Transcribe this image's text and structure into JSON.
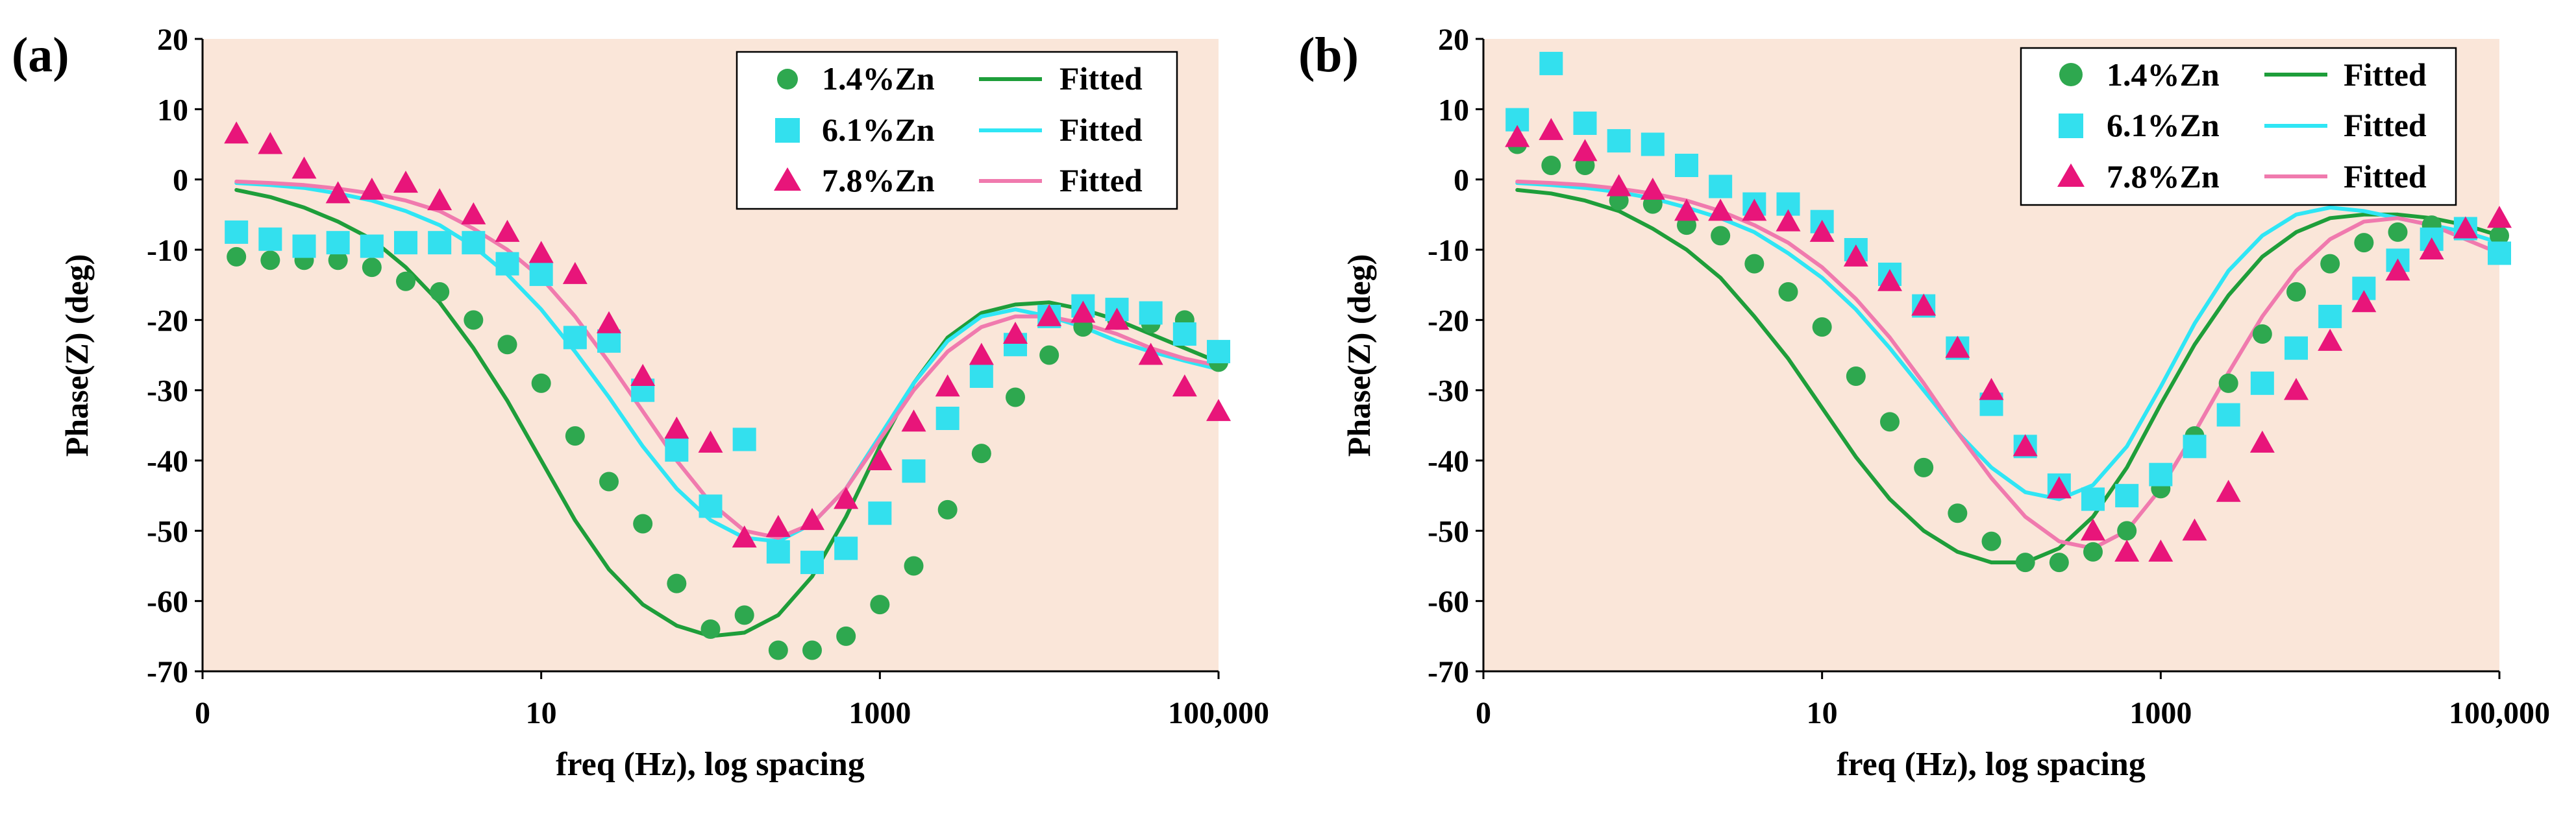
{
  "chart_data": [
    {
      "type": "scatter",
      "panel_label": "(a)",
      "xlabel": "freq (Hz), log spacing",
      "ylabel": "Phase(Z) (deg)",
      "x_scale": "log",
      "xlim_log10": [
        -1,
        5
      ],
      "ylim": [
        -70,
        20
      ],
      "x_ticks": [
        {
          "label": "0",
          "log10": -1
        },
        {
          "label": "10",
          "log10": 1
        },
        {
          "label": "1000",
          "log10": 3
        },
        {
          "label": "100,000",
          "log10": 5
        }
      ],
      "y_ticks": [
        "20",
        "10",
        "0",
        "-10",
        "-20",
        "-30",
        "-40",
        "-50",
        "-60",
        "-70"
      ],
      "y_tick_values": [
        20,
        10,
        0,
        -10,
        -20,
        -30,
        -40,
        -50,
        -60,
        -70
      ],
      "grid": false,
      "background": "#FAE6D9",
      "legend_position": "top-right",
      "legend": [
        {
          "marker_label": "1.4%Zn",
          "line_label": "Fitted",
          "color": "#2EA84F",
          "line_color": "#1E9E3A",
          "marker": "circle"
        },
        {
          "marker_label": "6.1%Zn",
          "line_label": "Fitted",
          "color": "#33E0EE",
          "line_color": "#2FE6F5",
          "marker": "square"
        },
        {
          "marker_label": "7.8%Zn",
          "line_label": "Fitted",
          "color": "#E8157A",
          "line_color": "#F07AAE",
          "marker": "triangle"
        }
      ],
      "series": [
        {
          "name": "1.4%Zn",
          "x_log10": [
            -0.8,
            -0.6,
            -0.4,
            -0.2,
            0.0,
            0.2,
            0.4,
            0.6,
            0.8,
            1.0,
            1.2,
            1.4,
            1.6,
            1.8,
            2.0,
            2.2,
            2.4,
            2.6,
            2.8,
            3.0,
            3.2,
            3.4,
            3.6,
            3.8,
            4.0,
            4.2,
            4.4,
            4.6,
            4.8,
            5.0
          ],
          "y": [
            -11,
            -11.5,
            -11.5,
            -11.5,
            -12.5,
            -14.5,
            -16,
            -20,
            -23.5,
            -29,
            -36.5,
            -43,
            -49,
            -57.5,
            -64,
            -62,
            -67,
            -67,
            -65,
            -60.5,
            -55,
            -47,
            -39,
            -31,
            -25,
            -21,
            -20,
            -20.5,
            -20,
            -26
          ]
        },
        {
          "name": "Fitted 1.4%Zn",
          "line": true,
          "x_log10": [
            -0.8,
            -0.6,
            -0.4,
            -0.2,
            0.0,
            0.2,
            0.4,
            0.6,
            0.8,
            1.0,
            1.2,
            1.4,
            1.6,
            1.8,
            2.0,
            2.2,
            2.4,
            2.6,
            2.8,
            3.0,
            3.2,
            3.4,
            3.6,
            3.8,
            4.0,
            4.2,
            4.4,
            4.6,
            4.8,
            5.0
          ],
          "y": [
            -1.5,
            -2.5,
            -4,
            -6,
            -8.5,
            -12.5,
            -17.5,
            -24,
            -31.5,
            -40,
            -48.5,
            -55.5,
            -60.5,
            -63.5,
            -65,
            -64.5,
            -62,
            -56.5,
            -48,
            -38,
            -29,
            -22.5,
            -19,
            -17.8,
            -17.5,
            -18.5,
            -20,
            -22,
            -24,
            -26
          ]
        },
        {
          "name": "6.1%Zn",
          "x_log10": [
            -0.8,
            -0.6,
            -0.4,
            -0.2,
            0.0,
            0.2,
            0.4,
            0.6,
            0.8,
            1.0,
            1.2,
            1.4,
            1.6,
            1.8,
            2.0,
            2.2,
            2.4,
            2.6,
            2.8,
            3.0,
            3.2,
            3.4,
            3.6,
            3.8,
            4.0,
            4.2,
            4.4,
            4.6,
            4.8,
            5.0
          ],
          "y": [
            -7.5,
            -8.5,
            -9.5,
            -9,
            -9.5,
            -9,
            -9,
            -9,
            -12,
            -13.5,
            -22.5,
            -23,
            -30,
            -38.5,
            -46.5,
            -37,
            -53,
            -54.5,
            -52.5,
            -47.5,
            -41.5,
            -34,
            -28,
            -23.5,
            -19.5,
            -18,
            -18.5,
            -19,
            -22,
            -24.5
          ]
        },
        {
          "name": "Fitted 6.1%Zn",
          "line": true,
          "x_log10": [
            -0.8,
            -0.6,
            -0.4,
            -0.2,
            0.0,
            0.2,
            0.4,
            0.6,
            0.8,
            1.0,
            1.2,
            1.4,
            1.6,
            1.8,
            2.0,
            2.2,
            2.4,
            2.6,
            2.8,
            3.0,
            3.2,
            3.4,
            3.6,
            3.8,
            4.0,
            4.2,
            4.4,
            4.6,
            4.8,
            5.0
          ],
          "y": [
            -0.5,
            -0.8,
            -1.2,
            -2,
            -3,
            -4.5,
            -6.5,
            -9.5,
            -13.5,
            -18.5,
            -24.5,
            -31,
            -38,
            -44,
            -48.5,
            -51,
            -51.5,
            -49,
            -44,
            -36.5,
            -29,
            -23,
            -19.5,
            -18.5,
            -19.5,
            -21,
            -23,
            -24.5,
            -25.8,
            -27
          ]
        },
        {
          "name": "7.8%Zn",
          "x_log10": [
            -0.8,
            -0.6,
            -0.4,
            -0.2,
            0.0,
            0.2,
            0.4,
            0.6,
            0.8,
            1.0,
            1.2,
            1.4,
            1.6,
            1.8,
            2.0,
            2.2,
            2.4,
            2.6,
            2.8,
            3.0,
            3.2,
            3.4,
            3.6,
            3.8,
            4.0,
            4.2,
            4.4,
            4.6,
            4.8,
            5.0
          ],
          "y": [
            6.5,
            5,
            1.5,
            -2,
            -1.5,
            -0.5,
            -3,
            -5,
            -7.5,
            -10.5,
            -13.5,
            -20.5,
            -28,
            -35.5,
            -37.5,
            -51,
            -49.5,
            -48.5,
            -45.5,
            -40,
            -34.5,
            -29.5,
            -25,
            -22,
            -19.5,
            -19,
            -20,
            -25,
            -29.5,
            -33
          ]
        },
        {
          "name": "Fitted 7.8%Zn",
          "line": true,
          "x_log10": [
            -0.8,
            -0.6,
            -0.4,
            -0.2,
            0.0,
            0.2,
            0.4,
            0.6,
            0.8,
            1.0,
            1.2,
            1.4,
            1.6,
            1.8,
            2.0,
            2.2,
            2.4,
            2.6,
            2.8,
            3.0,
            3.2,
            3.4,
            3.6,
            3.8,
            4.0,
            4.2,
            4.4,
            4.6,
            4.8,
            5.0
          ],
          "y": [
            -0.3,
            -0.5,
            -0.8,
            -1.3,
            -2,
            -3,
            -4.5,
            -7,
            -10,
            -14,
            -19.5,
            -26,
            -33,
            -40,
            -46,
            -50,
            -51,
            -49,
            -44,
            -37,
            -30,
            -24.5,
            -21,
            -19.5,
            -19.5,
            -20.5,
            -22,
            -24,
            -25.5,
            -26.5
          ]
        }
      ]
    },
    {
      "type": "scatter",
      "panel_label": "(b)",
      "xlabel": "freq (Hz), log spacing",
      "ylabel": "Phase(Z) (deg)",
      "x_scale": "log",
      "xlim_log10": [
        -1,
        5
      ],
      "ylim": [
        -70,
        20
      ],
      "x_ticks": [
        {
          "label": "0",
          "log10": -1
        },
        {
          "label": "10",
          "log10": 1
        },
        {
          "label": "1000",
          "log10": 3
        },
        {
          "label": "100,000",
          "log10": 5
        }
      ],
      "y_ticks": [
        "20",
        "10",
        "0",
        "-10",
        "-20",
        "-30",
        "-40",
        "-50",
        "-60",
        "-70"
      ],
      "y_tick_values": [
        20,
        10,
        0,
        -10,
        -20,
        -30,
        -40,
        -50,
        -60,
        -70
      ],
      "grid": false,
      "background": "#FAE6D9",
      "legend_position": "top-right",
      "legend": [
        {
          "marker_label": "1.4%Zn",
          "line_label": "Fitted",
          "color": "#2EA84F",
          "line_color": "#1E9E3A",
          "marker": "circle"
        },
        {
          "marker_label": "6.1%Zn",
          "line_label": "Fitted",
          "color": "#33E0EE",
          "line_color": "#2FE6F5",
          "marker": "square"
        },
        {
          "marker_label": "7.8%Zn",
          "line_label": "Fitted",
          "color": "#E8157A",
          "line_color": "#F07AAE",
          "marker": "triangle"
        }
      ],
      "series": [
        {
          "name": "1.4%Zn",
          "x_log10": [
            -0.8,
            -0.6,
            -0.4,
            -0.2,
            0.0,
            0.2,
            0.4,
            0.6,
            0.8,
            1.0,
            1.2,
            1.4,
            1.6,
            1.8,
            2.0,
            2.2,
            2.4,
            2.6,
            2.8,
            3.0,
            3.2,
            3.4,
            3.6,
            3.8,
            4.0,
            4.2,
            4.4,
            4.6,
            4.8,
            5.0
          ],
          "y": [
            5,
            2,
            2,
            -3,
            -3.5,
            -6.5,
            -8,
            -12,
            -16,
            -21,
            -28,
            -34.5,
            -41,
            -47.5,
            -51.5,
            -54.5,
            -54.5,
            -53,
            -50,
            -44,
            -36.5,
            -29,
            -22,
            -16,
            -12,
            -9,
            -7.5,
            -6.5,
            -7,
            -8
          ]
        },
        {
          "name": "Fitted 1.4%Zn",
          "line": true,
          "x_log10": [
            -0.8,
            -0.6,
            -0.4,
            -0.2,
            0.0,
            0.2,
            0.4,
            0.6,
            0.8,
            1.0,
            1.2,
            1.4,
            1.6,
            1.8,
            2.0,
            2.2,
            2.4,
            2.6,
            2.8,
            3.0,
            3.2,
            3.4,
            3.6,
            3.8,
            4.0,
            4.2,
            4.4,
            4.6,
            4.8,
            5.0
          ],
          "y": [
            -1.5,
            -2,
            -3,
            -4.5,
            -7,
            -10,
            -14,
            -19.5,
            -25.5,
            -32.5,
            -39.5,
            -45.5,
            -50,
            -53,
            -54.5,
            -54.5,
            -52.5,
            -48,
            -41,
            -32,
            -23.5,
            -16.5,
            -11,
            -7.5,
            -5.5,
            -5,
            -5,
            -5.5,
            -6.5,
            -8
          ]
        },
        {
          "name": "6.1%Zn",
          "x_log10": [
            -0.8,
            -0.6,
            -0.4,
            -0.2,
            0.0,
            0.2,
            0.4,
            0.6,
            0.8,
            1.0,
            1.2,
            1.4,
            1.6,
            1.8,
            2.0,
            2.2,
            2.4,
            2.6,
            2.8,
            3.0,
            3.2,
            3.4,
            3.6,
            3.8,
            4.0,
            4.2,
            4.4,
            4.6,
            4.8,
            5.0
          ],
          "y": [
            8.5,
            16.5,
            8,
            5.5,
            5,
            2,
            -1,
            -3.5,
            -3.5,
            -6,
            -10,
            -13.5,
            -18,
            -24,
            -32,
            -38,
            -43.5,
            -45.5,
            -45,
            -42,
            -38,
            -33.5,
            -29,
            -24,
            -19.5,
            -15.5,
            -11.5,
            -8.5,
            -7,
            -10.5
          ]
        },
        {
          "name": "Fitted 6.1%Zn",
          "line": true,
          "x_log10": [
            -0.8,
            -0.6,
            -0.4,
            -0.2,
            0.0,
            0.2,
            0.4,
            0.6,
            0.8,
            1.0,
            1.2,
            1.4,
            1.6,
            1.8,
            2.0,
            2.2,
            2.4,
            2.6,
            2.8,
            3.0,
            3.2,
            3.4,
            3.6,
            3.8,
            4.0,
            4.2,
            4.4,
            4.6,
            4.8,
            5.0
          ],
          "y": [
            -0.5,
            -0.8,
            -1.2,
            -1.8,
            -2.7,
            -4,
            -5.5,
            -7.5,
            -10.5,
            -14,
            -18.5,
            -24,
            -30,
            -36,
            -41,
            -44.5,
            -45.5,
            -43.5,
            -38,
            -29.5,
            -20.5,
            -13,
            -8,
            -5,
            -4,
            -4.5,
            -5.5,
            -6.5,
            -7.5,
            -9
          ]
        },
        {
          "name": "7.8%Zn",
          "x_log10": [
            -0.8,
            -0.6,
            -0.4,
            -0.2,
            0.0,
            0.2,
            0.4,
            0.6,
            0.8,
            1.0,
            1.2,
            1.4,
            1.6,
            1.8,
            2.0,
            2.2,
            2.4,
            2.6,
            2.8,
            3.0,
            3.2,
            3.4,
            3.6,
            3.8,
            4.0,
            4.2,
            4.4,
            4.6,
            4.8,
            5.0
          ],
          "y": [
            6,
            7,
            4,
            -1,
            -1.5,
            -4.5,
            -4.5,
            -4.5,
            -6,
            -7.5,
            -11,
            -14.5,
            -18,
            -24,
            -30,
            -38,
            -44,
            -50,
            -53,
            -53,
            -50,
            -44.5,
            -37.5,
            -30,
            -23,
            -17.5,
            -13,
            -10,
            -7,
            -5.5
          ]
        },
        {
          "name": "Fitted 7.8%Zn",
          "line": true,
          "x_log10": [
            -0.8,
            -0.6,
            -0.4,
            -0.2,
            0.0,
            0.2,
            0.4,
            0.6,
            0.8,
            1.0,
            1.2,
            1.4,
            1.6,
            1.8,
            2.0,
            2.2,
            2.4,
            2.6,
            2.8,
            3.0,
            3.2,
            3.4,
            3.6,
            3.8,
            4.0,
            4.2,
            4.4,
            4.6,
            4.8,
            5.0
          ],
          "y": [
            -0.3,
            -0.5,
            -0.8,
            -1.3,
            -2,
            -3,
            -4.5,
            -6.5,
            -9,
            -12.5,
            -17,
            -22.5,
            -29,
            -36,
            -42.5,
            -48,
            -51.5,
            -52.5,
            -50,
            -44,
            -36,
            -27.5,
            -19.5,
            -13,
            -8.5,
            -6,
            -5.5,
            -6.5,
            -8.5,
            -10.5
          ]
        }
      ]
    }
  ]
}
